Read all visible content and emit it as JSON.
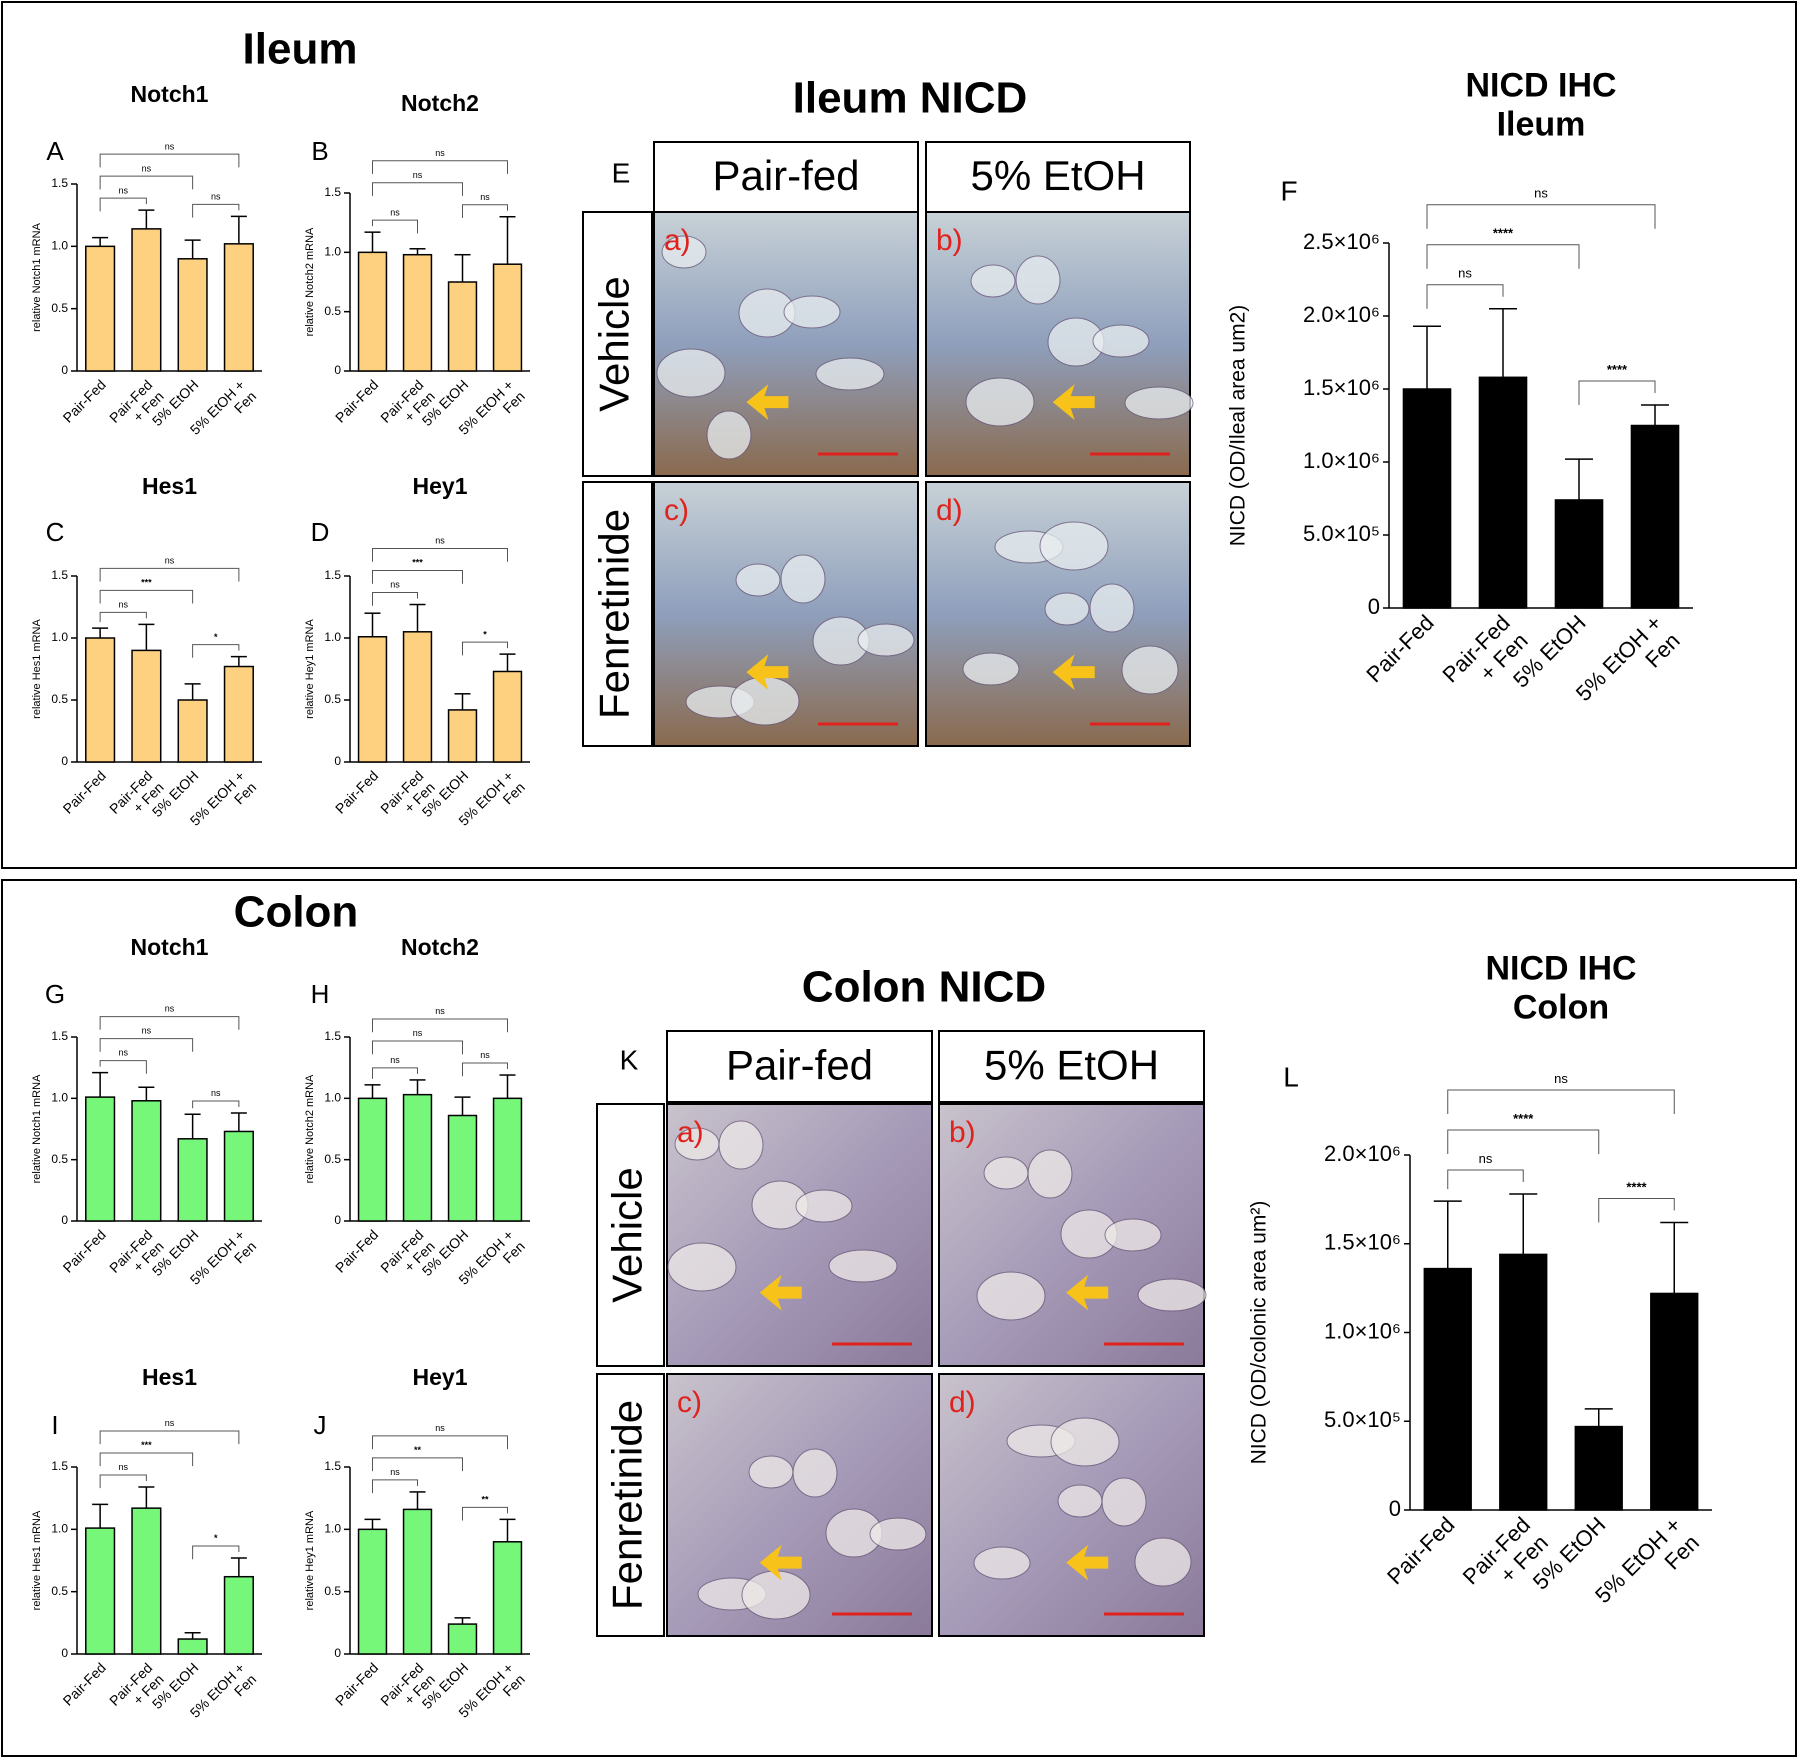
{
  "panels": [
    {
      "title": "Ileum",
      "micrograph": {
        "letter": "E",
        "title": "Ileum NICD",
        "columns": [
          "Pair-fed",
          "5% EtOH"
        ],
        "rows": [
          "Vehicle",
          "Fenretinide"
        ],
        "cells": [
          "a)",
          "b)",
          "c)",
          "d)"
        ]
      }
    },
    {
      "title": "Colon",
      "micrograph": {
        "letter": "K",
        "title": "Colon NICD",
        "columns": [
          "Pair-fed",
          "5% EtOH"
        ],
        "rows": [
          "Vehicle",
          "Fenretinide"
        ],
        "cells": [
          "a)",
          "b)",
          "c)",
          "d)"
        ]
      }
    }
  ],
  "chart_data": [
    {
      "type": "bar",
      "letter": "A",
      "title": "Notch1",
      "ylabel": "relative Notch1 mRNA",
      "categories": [
        "Pair-Fed",
        "Pair-Fed\n+ Fen",
        "5% EtOH",
        "5% EtOH +\nFen"
      ],
      "values": [
        1.0,
        1.14,
        0.9,
        1.02
      ],
      "errors": [
        0.07,
        0.15,
        0.15,
        0.22
      ],
      "color": "#fdd17f",
      "ylim": [
        0,
        1.5
      ],
      "yticks": [
        0,
        0.5,
        {
          "value": 1,
          "label": "1.0"
        },
        1.5
      ],
      "annotations": [
        {
          "between": [
            0,
            1
          ],
          "label": "ns"
        },
        {
          "between": [
            2,
            3
          ],
          "label": "ns"
        },
        {
          "between": [
            0,
            2
          ],
          "label": "ns"
        },
        {
          "between": [
            0,
            3
          ],
          "label": "ns"
        }
      ]
    },
    {
      "type": "bar",
      "letter": "B",
      "title": "Notch2",
      "ylabel": "relative Notch2 mRNA",
      "categories": [
        "Pair-Fed",
        "Pair-Fed\n+ Fen",
        "5% EtOH",
        "5% EtOH +\nFen"
      ],
      "values": [
        1.0,
        0.98,
        0.75,
        0.9
      ],
      "errors": [
        0.17,
        0.05,
        0.23,
        0.4
      ],
      "color": "#fdd17f",
      "ylim": [
        0,
        1.5
      ],
      "yticks": [
        0,
        0.5,
        {
          "value": 1,
          "label": "1.0"
        },
        1.5
      ],
      "annotations": [
        {
          "between": [
            0,
            1
          ],
          "label": "ns"
        },
        {
          "between": [
            2,
            3
          ],
          "label": "ns"
        },
        {
          "between": [
            0,
            2
          ],
          "label": "ns"
        },
        {
          "between": [
            0,
            3
          ],
          "label": "ns"
        }
      ]
    },
    {
      "type": "bar",
      "letter": "C",
      "title": "Hes1",
      "ylabel": "relative Hes1 mRNA",
      "categories": [
        "Pair-Fed",
        "Pair-Fed\n+ Fen",
        "5% EtOH",
        "5% EtOH +\nFen"
      ],
      "values": [
        1.0,
        0.9,
        0.5,
        0.77
      ],
      "errors": [
        0.08,
        0.21,
        0.13,
        0.08
      ],
      "color": "#fdd17f",
      "ylim": [
        0,
        1.5
      ],
      "yticks": [
        0,
        0.5,
        {
          "value": 1,
          "label": "1.0"
        },
        1.5
      ],
      "annotations": [
        {
          "between": [
            0,
            1
          ],
          "label": "ns"
        },
        {
          "between": [
            2,
            3
          ],
          "label": "*"
        },
        {
          "between": [
            0,
            2
          ],
          "label": "***"
        },
        {
          "between": [
            0,
            3
          ],
          "label": "ns"
        }
      ]
    },
    {
      "type": "bar",
      "letter": "D",
      "title": "Hey1",
      "ylabel": "relative Hey1 mRNA",
      "categories": [
        "Pair-Fed",
        "Pair-Fed\n+ Fen",
        "5% EtOH",
        "5% EtOH +\nFen"
      ],
      "values": [
        1.01,
        1.05,
        0.42,
        0.73
      ],
      "errors": [
        0.19,
        0.22,
        0.13,
        0.14
      ],
      "color": "#fdd17f",
      "ylim": [
        0,
        1.5
      ],
      "yticks": [
        0,
        0.5,
        {
          "value": 1,
          "label": "1.0"
        },
        1.5
      ],
      "annotations": [
        {
          "between": [
            0,
            1
          ],
          "label": "ns"
        },
        {
          "between": [
            2,
            3
          ],
          "label": "*"
        },
        {
          "between": [
            0,
            2
          ],
          "label": "***"
        },
        {
          "between": [
            0,
            3
          ],
          "label": "ns"
        }
      ]
    },
    {
      "type": "bar",
      "letter": "F",
      "title": "NICD IHC\nIleum",
      "ylabel": "NICD (OD/Ileal area um2)",
      "categories": [
        "Pair-Fed",
        "Pair-Fed\n+ Fen",
        "5% EtOH",
        "5% EtOH +\nFen"
      ],
      "values": [
        1500000,
        1580000,
        740000,
        1250000
      ],
      "errors": [
        430000,
        470000,
        280000,
        140000
      ],
      "color": "#000000",
      "ylim": [
        0,
        2500000
      ],
      "yticks": [
        0,
        {
          "value": 500000,
          "label": "5.0×10⁵"
        },
        {
          "value": 1000000,
          "label": "1.0×10⁶"
        },
        {
          "value": 1500000,
          "label": "1.5×10⁶"
        },
        {
          "value": 2000000,
          "label": "2.0×10⁶"
        },
        {
          "value": 2500000,
          "label": "2.5×10⁶"
        }
      ],
      "annotations": [
        {
          "between": [
            0,
            1
          ],
          "label": "ns"
        },
        {
          "between": [
            2,
            3
          ],
          "label": "****"
        },
        {
          "between": [
            0,
            2
          ],
          "label": "****"
        },
        {
          "between": [
            0,
            3
          ],
          "label": "ns"
        }
      ]
    },
    {
      "type": "bar",
      "letter": "G",
      "title": "Notch1",
      "ylabel": "relative Notch1 mRNA",
      "categories": [
        "Pair-Fed",
        "Pair-Fed\n+ Fen",
        "5% EtOH",
        "5% EtOH +\nFen"
      ],
      "values": [
        1.01,
        0.98,
        0.67,
        0.73
      ],
      "errors": [
        0.2,
        0.11,
        0.2,
        0.15
      ],
      "color": "#77f77a",
      "ylim": [
        0,
        1.5
      ],
      "yticks": [
        0,
        0.5,
        {
          "value": 1,
          "label": "1.0"
        },
        1.5
      ],
      "annotations": [
        {
          "between": [
            0,
            1
          ],
          "label": "ns"
        },
        {
          "between": [
            2,
            3
          ],
          "label": "ns"
        },
        {
          "between": [
            0,
            2
          ],
          "label": "ns"
        },
        {
          "between": [
            0,
            3
          ],
          "label": "ns"
        }
      ]
    },
    {
      "type": "bar",
      "letter": "H",
      "title": "Notch2",
      "ylabel": "relative Notch2 mRNA",
      "categories": [
        "Pair-Fed",
        "Pair-Fed\n+ Fen",
        "5% EtOH",
        "5% EtOH +\nFen"
      ],
      "values": [
        1.0,
        1.03,
        0.86,
        1.0
      ],
      "errors": [
        0.11,
        0.12,
        0.15,
        0.19
      ],
      "color": "#77f77a",
      "ylim": [
        0,
        1.5
      ],
      "yticks": [
        0,
        0.5,
        {
          "value": 1,
          "label": "1.0"
        },
        1.5
      ],
      "annotations": [
        {
          "between": [
            0,
            1
          ],
          "label": "ns"
        },
        {
          "between": [
            2,
            3
          ],
          "label": "ns"
        },
        {
          "between": [
            0,
            2
          ],
          "label": "ns"
        },
        {
          "between": [
            0,
            3
          ],
          "label": "ns"
        }
      ]
    },
    {
      "type": "bar",
      "letter": "I",
      "title": "Hes1",
      "ylabel": "relative Hes1 mRNA",
      "categories": [
        "Pair-Fed",
        "Pair-Fed\n+ Fen",
        "5% EtOH",
        "5% EtOH +\nFen"
      ],
      "values": [
        1.01,
        1.17,
        0.12,
        0.62
      ],
      "errors": [
        0.19,
        0.17,
        0.05,
        0.15
      ],
      "color": "#77f77a",
      "ylim": [
        0,
        1.5
      ],
      "yticks": [
        0,
        0.5,
        {
          "value": 1,
          "label": "1.0"
        },
        1.5
      ],
      "annotations": [
        {
          "between": [
            0,
            1
          ],
          "label": "ns"
        },
        {
          "between": [
            2,
            3
          ],
          "label": "*"
        },
        {
          "between": [
            0,
            2
          ],
          "label": "***"
        },
        {
          "between": [
            0,
            3
          ],
          "label": "ns"
        }
      ]
    },
    {
      "type": "bar",
      "letter": "J",
      "title": "Hey1",
      "ylabel": "relative Hey1 mRNA",
      "categories": [
        "Pair-Fed",
        "Pair-Fed\n+ Fen",
        "5% EtOH",
        "5% EtOH +\nFen"
      ],
      "values": [
        1.0,
        1.16,
        0.24,
        0.9
      ],
      "errors": [
        0.08,
        0.14,
        0.05,
        0.18
      ],
      "color": "#77f77a",
      "ylim": [
        0,
        1.5
      ],
      "yticks": [
        0,
        0.5,
        {
          "value": 1,
          "label": "1.0"
        },
        1.5
      ],
      "annotations": [
        {
          "between": [
            0,
            1
          ],
          "label": "ns"
        },
        {
          "between": [
            2,
            3
          ],
          "label": "**"
        },
        {
          "between": [
            0,
            2
          ],
          "label": "**"
        },
        {
          "between": [
            0,
            3
          ],
          "label": "ns"
        }
      ]
    },
    {
      "type": "bar",
      "letter": "L",
      "title": "NICD IHC\nColon",
      "ylabel": "NICD (OD/colonic area um²)",
      "categories": [
        "Pair-Fed",
        "Pair-Fed\n+ Fen",
        "5% EtOH",
        "5% EtOH +\nFen"
      ],
      "values": [
        1360000,
        1440000,
        470000,
        1220000
      ],
      "errors": [
        380000,
        340000,
        100000,
        400000
      ],
      "color": "#000000",
      "ylim": [
        0,
        2000000
      ],
      "yticks": [
        0,
        {
          "value": 500000,
          "label": "5.0×10⁵"
        },
        {
          "value": 1000000,
          "label": "1.0×10⁶"
        },
        {
          "value": 1500000,
          "label": "1.5×10⁶"
        },
        {
          "value": 2000000,
          "label": "2.0×10⁶"
        }
      ],
      "annotations": [
        {
          "between": [
            0,
            1
          ],
          "label": "ns"
        },
        {
          "between": [
            2,
            3
          ],
          "label": "****"
        },
        {
          "between": [
            0,
            2
          ],
          "label": "****"
        },
        {
          "between": [
            0,
            3
          ],
          "label": "ns"
        }
      ]
    }
  ]
}
